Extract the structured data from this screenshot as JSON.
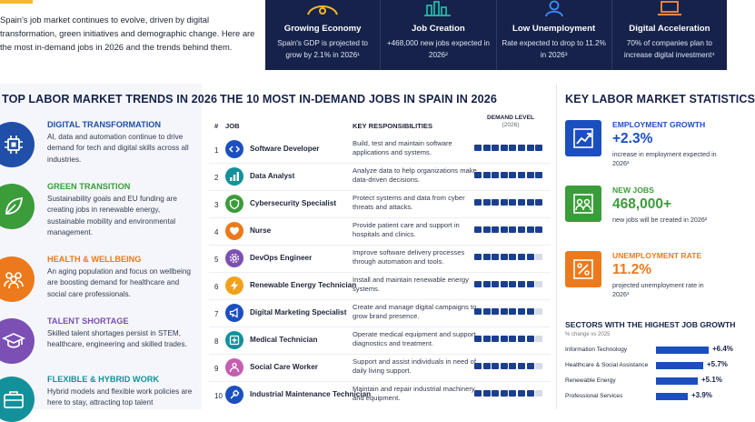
{
  "colors": {
    "navy": "#16224a",
    "accent_blue": "#1b4fbf",
    "demand_on": "#1b3f8f",
    "demand_off": "#d7dbe6",
    "digital": "#1f4fa8",
    "green": "#3b9c3a",
    "orange": "#ec7a1c",
    "purple": "#7b4fb3",
    "teal": "#13919a"
  },
  "intro": {
    "text": "Spain's job market continues to evolve, driven by digital transformation, green initiatives and demographic change. Here are the most in-demand jobs in 2026 and the trends behind them."
  },
  "banner": [
    {
      "icon": "growth-icon",
      "title": "Growing Economy",
      "desc": "Spain's GDP is projected to grow by 2.1% in 2026¹"
    },
    {
      "icon": "bar-chart-icon",
      "title": "Job Creation",
      "desc": "+468,000 new jobs expected in 2026²"
    },
    {
      "icon": "person-icon",
      "title": "Low Unemployment",
      "desc": "Rate expected to drop to 11.2% in 2026³"
    },
    {
      "icon": "laptop-icon",
      "title": "Digital Acceleration",
      "desc": "70% of companies plan to increase digital investment⁴"
    }
  ],
  "trends": {
    "heading": "TOP LABOR MARKET TRENDS IN 2026",
    "items": [
      {
        "icon": "chip-icon",
        "title": "DIGITAL TRANSFORMATION",
        "desc": "AI, data and automation continue to drive demand for tech and digital skills across all industries."
      },
      {
        "icon": "leaf-icon",
        "title": "GREEN TRANSITION",
        "desc": "Sustainability goals and EU funding are creating jobs in renewable energy, sustainable mobility and environmental management."
      },
      {
        "icon": "people-icon",
        "title": "HEALTH & WELLBEING",
        "desc": "An aging population and focus on wellbeing are boosting demand for healthcare and social care professionals."
      },
      {
        "icon": "graduation-cap-icon",
        "title": "TALENT SHORTAGE",
        "desc": "Skilled talent shortages persist in STEM, healthcare, engineering and skilled trades."
      },
      {
        "icon": "briefcase-icon",
        "title": "FLEXIBLE & HYBRID WORK",
        "desc": "Hybrid models and flexible work policies are here to stay, attracting top talent"
      }
    ]
  },
  "jobs": {
    "heading": "THE 10 MOST IN-DEMAND JOBS IN SPAIN IN 2026",
    "col_num": "#",
    "col_job": "JOB",
    "col_resp": "KEY RESPONSIBILITIES",
    "col_demand": "DEMAND LEVEL",
    "col_demand_sub": "(2026)",
    "demand_max": 8,
    "rows": [
      {
        "num": "1",
        "icon": "code-icon",
        "title": "Software Developer",
        "resp": "Build, test and maintain software applications and systems.",
        "demand": 8
      },
      {
        "num": "2",
        "icon": "data-chart-icon",
        "title": "Data Analyst",
        "resp": "Analyze data to help organizations make data-driven decisions.",
        "demand": 8
      },
      {
        "num": "3",
        "icon": "shield-icon",
        "title": "Cybersecurity Specialist",
        "resp": "Protect systems and data from cyber threats and attacks.",
        "demand": 8
      },
      {
        "num": "4",
        "icon": "heart-icon",
        "title": "Nurse",
        "resp": "Provide patient care and support in hospitals and clinics.",
        "demand": 8
      },
      {
        "num": "5",
        "icon": "gear-icon",
        "title": "DevOps Engineer",
        "resp": "Improve software delivery processes through automation and tools.",
        "demand": 7
      },
      {
        "num": "6",
        "icon": "bolt-icon",
        "title": "Renewable Energy Technician",
        "resp": "Install and maintain renewable energy systems.",
        "demand": 7
      },
      {
        "num": "7",
        "icon": "megaphone-icon",
        "title": "Digital Marketing Specialist",
        "resp": "Create and manage digital campaigns to grow brand presence.",
        "demand": 7
      },
      {
        "num": "8",
        "icon": "medical-icon",
        "title": "Medical Technician",
        "resp": "Operate medical equipment and support diagnostics and treatment.",
        "demand": 7
      },
      {
        "num": "9",
        "icon": "care-icon",
        "title": "Social Care Worker",
        "resp": "Support and assist individuals in need of daily living support.",
        "demand": 7
      },
      {
        "num": "10",
        "icon": "tools-icon",
        "title": "Industrial Maintenance Technician",
        "resp": "Maintain and repair industrial machinery and equipment.",
        "demand": 7
      }
    ]
  },
  "stats": {
    "heading": "KEY LABOR MARKET STATISTICS",
    "items": [
      {
        "icon": "trend-up-icon",
        "label": "EMPLOYMENT GROWTH",
        "value": "+2.3%",
        "desc": "increase in employment expected in 2026³"
      },
      {
        "icon": "group-icon",
        "label": "NEW JOBS",
        "value": "468,000+",
        "desc": "new jobs will be created in 2026²"
      },
      {
        "icon": "percent-icon",
        "label": "UNEMPLOYMENT RATE",
        "value": "11.2%",
        "desc": "projected unemployment rate in 2026³"
      }
    ],
    "sectors_heading": "SECTORS WITH THE HIGHEST JOB GROWTH",
    "sectors_sub": "% change vs 2025",
    "sectors": [
      {
        "name": "Information Technology",
        "value": 6.4,
        "label": "+6.4%"
      },
      {
        "name": "Healthcare & Social Assistance",
        "value": 5.7,
        "label": "+5.7%"
      },
      {
        "name": "Renewable Energy",
        "value": 5.1,
        "label": "+5.1%"
      },
      {
        "name": "Professional Services",
        "value": 3.9,
        "label": "+3.9%"
      }
    ]
  }
}
